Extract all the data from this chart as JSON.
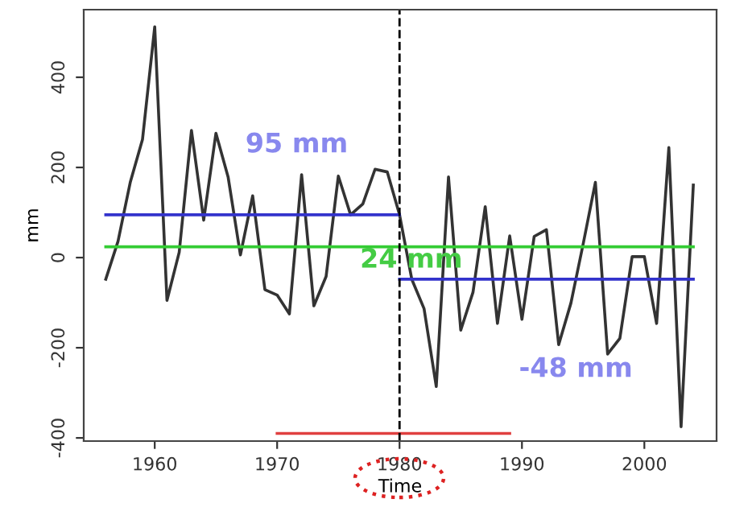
{
  "chart_data": {
    "type": "line",
    "xlabel": "Time",
    "ylabel": "mm",
    "xlim": [
      1954.2,
      2005.9
    ],
    "ylim": [
      -407,
      550
    ],
    "xticks": [
      1960,
      1970,
      1980,
      1990,
      2000
    ],
    "yticks": [
      {
        "value": -400,
        "label": "-400"
      },
      {
        "value": -200,
        "label": "-200"
      },
      0,
      200,
      400
    ],
    "grid": false,
    "marker": "none",
    "line_style": "solid",
    "series": [
      {
        "color": "#333333",
        "x": [
          1956,
          1957,
          1958,
          1959,
          1960,
          1961,
          1962,
          1963,
          1964,
          1965,
          1966,
          1967,
          1968,
          1969,
          1970,
          1971,
          1972,
          1973,
          1974,
          1975,
          1976,
          1977,
          1978,
          1979,
          1980,
          1981,
          1982,
          1983,
          1984,
          1985,
          1986,
          1987,
          1988,
          1989,
          1990,
          1991,
          1992,
          1993,
          1994,
          1995,
          1996,
          1997,
          1998,
          1999,
          2000,
          2001,
          2002,
          2003,
          2004
        ],
        "values": [
          -48,
          36,
          167,
          262,
          512,
          -95,
          12,
          282,
          83,
          276,
          178,
          6,
          137,
          -71,
          -83,
          -125,
          184,
          -107,
          -42,
          181,
          95,
          119,
          196,
          190,
          95,
          -48,
          -113,
          -286,
          179,
          -161,
          -77,
          113,
          -146,
          48,
          -137,
          47,
          62,
          -193,
          -101,
          30,
          167,
          -214,
          -179,
          2,
          2,
          -146,
          244,
          -375,
          161
        ]
      },
      {
        "name": "95 mm",
        "color": "#3333cc",
        "x": [
          1956,
          1980
        ],
        "values": [
          95,
          95
        ]
      },
      {
        "name": "-48 mm",
        "color": "#3333cc",
        "x": [
          1980,
          2004
        ],
        "values": [
          -48,
          -48
        ]
      },
      {
        "name": "24 mm",
        "color": "#33cc33",
        "x": [
          1956,
          2004
        ],
        "values": [
          24,
          24
        ]
      },
      {
        "color": "#e04040",
        "x": [
          1970,
          1989
        ],
        "values": [
          -390,
          -390
        ]
      }
    ],
    "ref_lines": [
      {
        "axis": "x",
        "value": 1980,
        "color": "#000000",
        "line_style": "dashed"
      }
    ]
  }
}
